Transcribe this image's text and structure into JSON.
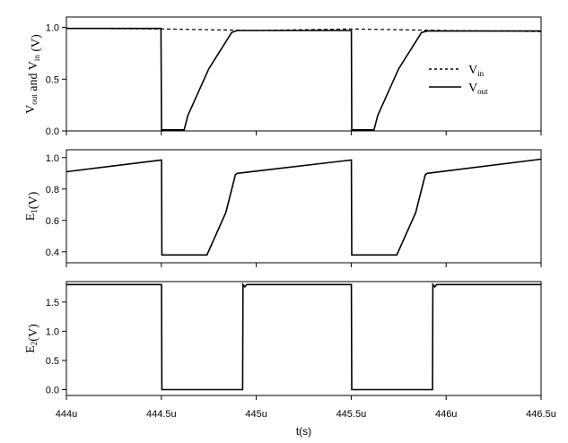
{
  "chart_data": [
    {
      "type": "line",
      "ylabel_main": "V",
      "ylabel_sub1": "out",
      "ylabel_mid": " and V",
      "ylabel_sub2": "in",
      "ylabel_tail": " (V)",
      "xlim": [
        444.0,
        446.5
      ],
      "ylim": [
        0.0,
        1.1
      ],
      "yticks": [
        0.0,
        0.5,
        1.0
      ],
      "ytick_labels": [
        "0.0",
        "0.5",
        "1.0"
      ],
      "legend": {
        "position": "center-right",
        "entries": [
          {
            "main": "V",
            "sub": "in",
            "style": "dashed"
          },
          {
            "main": "V",
            "sub": "out",
            "style": "solid"
          }
        ]
      },
      "series": [
        {
          "style": "dashed",
          "x": [
            444.0,
            444.5,
            445.0,
            445.5,
            446.0,
            446.5
          ],
          "y": [
            0.99,
            0.985,
            0.97,
            0.985,
            0.97,
            0.96
          ]
        },
        {
          "style": "solid",
          "x": [
            444.0,
            444.498,
            444.501,
            444.62,
            444.64,
            444.75,
            444.87,
            444.9,
            445.5,
            445.501,
            445.503,
            445.62,
            445.64,
            445.75,
            445.87,
            445.9,
            446.5
          ],
          "y": [
            0.99,
            0.99,
            0.01,
            0.01,
            0.15,
            0.6,
            0.95,
            0.97,
            0.97,
            0.97,
            0.01,
            0.01,
            0.15,
            0.6,
            0.95,
            0.965,
            0.965
          ]
        }
      ]
    },
    {
      "type": "line",
      "ylabel_main": "E",
      "ylabel_sub1": "1",
      "ylabel_tail": "(V)",
      "xlim": [
        444.0,
        446.5
      ],
      "ylim": [
        0.33,
        1.05
      ],
      "yticks": [
        0.4,
        0.6,
        0.8,
        1.0
      ],
      "ytick_labels": [
        "0.4",
        "0.6",
        "0.8",
        "1.0"
      ],
      "series": [
        {
          "style": "solid",
          "x": [
            444.0,
            444.5,
            444.501,
            444.503,
            444.6,
            444.74,
            444.84,
            444.89,
            444.9,
            445.5,
            445.501,
            445.503,
            445.6,
            445.74,
            445.84,
            445.89,
            445.9,
            446.5
          ],
          "y": [
            0.91,
            0.985,
            0.985,
            0.38,
            0.38,
            0.38,
            0.65,
            0.89,
            0.9,
            0.985,
            0.985,
            0.38,
            0.38,
            0.38,
            0.65,
            0.89,
            0.9,
            0.99
          ]
        }
      ]
    },
    {
      "type": "line",
      "ylabel_main": "E",
      "ylabel_sub1": "2",
      "ylabel_tail": "(V)",
      "xlabel": "t(s)",
      "xlim": [
        444.0,
        446.5
      ],
      "ylim": [
        -0.1,
        1.85
      ],
      "yticks": [
        0.0,
        0.5,
        1.0,
        1.5
      ],
      "ytick_labels": [
        "0.0",
        "0.5",
        "1.0",
        "1.5"
      ],
      "xticks": [
        444.0,
        444.5,
        445.0,
        445.5,
        446.0,
        446.5
      ],
      "xtick_labels": [
        "444u",
        "444.5u",
        "445u",
        "445.5u",
        "446u",
        "446.5u"
      ],
      "series": [
        {
          "style": "solid",
          "x": [
            444.0,
            444.5,
            444.501,
            444.503,
            444.928,
            444.93,
            444.94,
            444.95,
            444.96,
            445.5,
            445.501,
            445.503,
            445.928,
            445.93,
            445.94,
            445.95,
            445.96,
            446.5
          ],
          "y": [
            1.8,
            1.8,
            1.8,
            0.0,
            0.0,
            1.8,
            1.76,
            1.8,
            1.8,
            1.8,
            1.8,
            0.0,
            0.0,
            1.8,
            1.76,
            1.8,
            1.8,
            1.8
          ]
        }
      ]
    }
  ]
}
